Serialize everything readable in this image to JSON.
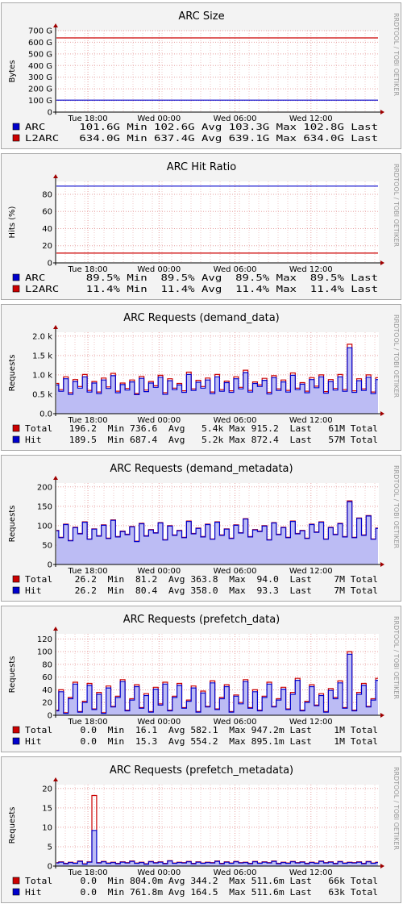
{
  "watermark": "RRDTOOL / TOBI OETIKER",
  "x_ticks": [
    "Tue 18:00",
    "Wed 00:00",
    "Wed 06:00",
    "Wed 12:00"
  ],
  "chart_data": [
    {
      "type": "line",
      "title": "ARC Size",
      "ylabel": "Bytes",
      "yticks": [
        "0",
        "100 G",
        "200 G",
        "300 G",
        "400 G",
        "500 G",
        "600 G",
        "700 G"
      ],
      "ylim": [
        0,
        700
      ],
      "y_unit_value": "G",
      "series": [
        {
          "name": "ARC",
          "color": "#0000cc",
          "style": "line",
          "values": [
            102.6,
            102.6,
            102.6,
            102.6,
            102.6,
            102.6,
            102.6,
            102.6
          ]
        },
        {
          "name": "L2ARC",
          "color": "#cc0000",
          "style": "line",
          "values": [
            637.4,
            637.4,
            637.4,
            637.4,
            637.4,
            637.4,
            637.4,
            637.4
          ]
        }
      ],
      "legend": [
        {
          "name": "ARC",
          "color": "#0000cc",
          "text": "ARC     101.6G Min 102.6G Avg 103.3G Max 102.8G Last"
        },
        {
          "name": "L2ARC",
          "color": "#cc0000",
          "text": "L2ARC   634.0G Min 637.4G Avg 639.1G Max 634.0G Last"
        }
      ]
    },
    {
      "type": "line",
      "title": "ARC Hit Ratio",
      "ylabel": "Hits (%)",
      "yticks": [
        "0",
        "20",
        "40",
        "60",
        "80"
      ],
      "ylim": [
        0,
        95
      ],
      "series": [
        {
          "name": "ARC",
          "color": "#0000cc",
          "style": "line",
          "values": [
            89.5,
            89.5,
            89.5,
            89.5,
            89.5,
            89.5,
            89.5,
            89.5
          ]
        },
        {
          "name": "L2ARC",
          "color": "#cc0000",
          "style": "line",
          "values": [
            11.4,
            11.4,
            11.4,
            11.4,
            11.4,
            11.4,
            11.4,
            11.4
          ]
        }
      ],
      "legend": [
        {
          "name": "ARC",
          "color": "#0000cc",
          "text": "ARC      89.5% Min  89.5% Avg  89.5% Max  89.5% Last"
        },
        {
          "name": "L2ARC",
          "color": "#cc0000",
          "text": "L2ARC    11.4% Min  11.4% Avg  11.4% Max  11.4% Last"
        }
      ]
    },
    {
      "type": "area",
      "title": "ARC Requests (demand_data)",
      "ylabel": "Requests",
      "yticks": [
        "0.0",
        "0.5 k",
        "1.0 k",
        "1.5 k",
        "2.0 k"
      ],
      "ylim": [
        0,
        2100
      ],
      "series": [
        {
          "name": "Total",
          "color": "#cc0000",
          "style": "line",
          "values": [
            780,
            620,
            950,
            540,
            880,
            700,
            1010,
            600,
            830,
            560,
            920,
            690,
            1040,
            580,
            790,
            650,
            870,
            520,
            960,
            610,
            830,
            720,
            990,
            540,
            900,
            660,
            780,
            590,
            1070,
            640,
            860,
            700,
            920,
            560,
            1010,
            620,
            840,
            590,
            950,
            680,
            1120,
            600,
            820,
            740,
            910,
            550,
            980,
            640,
            870,
            600,
            1050,
            660,
            800,
            580,
            930,
            710,
            1000,
            570,
            880,
            650,
            1010,
            620,
            1790,
            590,
            900,
            640,
            1000,
            560,
            930
          ]
        },
        {
          "name": "Hit",
          "color": "#0000cc",
          "style": "line",
          "values": [
            740,
            580,
            900,
            500,
            830,
            660,
            950,
            560,
            790,
            520,
            870,
            650,
            980,
            540,
            750,
            610,
            820,
            490,
            910,
            570,
            790,
            680,
            940,
            500,
            850,
            620,
            740,
            550,
            1010,
            600,
            810,
            660,
            870,
            520,
            950,
            580,
            800,
            550,
            900,
            640,
            1060,
            560,
            780,
            700,
            860,
            510,
            930,
            600,
            820,
            560,
            990,
            620,
            760,
            540,
            880,
            670,
            950,
            530,
            830,
            610,
            950,
            580,
            1700,
            550,
            850,
            600,
            940,
            520,
            880
          ]
        }
      ],
      "legend": [
        {
          "name": "Total",
          "color": "#cc0000",
          "text": "Total   196.2  Min 736.6  Avg   5.4k Max 915.2  Last   61M Total"
        },
        {
          "name": "Hit",
          "color": "#0000cc",
          "text": "Hit     189.5  Min 687.4  Avg   5.2k Max 872.4  Last   57M Total"
        }
      ]
    },
    {
      "type": "area",
      "title": "ARC Requests (demand_metadata)",
      "ylabel": "Requests",
      "yticks": [
        "0",
        "50",
        "100",
        "150",
        "200"
      ],
      "ylim": [
        0,
        210
      ],
      "series": [
        {
          "name": "Total",
          "color": "#cc0000",
          "style": "line",
          "values": [
            88,
            70,
            104,
            62,
            96,
            80,
            110,
            66,
            92,
            74,
            102,
            68,
            115,
            72,
            86,
            78,
            98,
            60,
            106,
            74,
            90,
            82,
            108,
            64,
            100,
            76,
            88,
            70,
            112,
            80,
            94,
            72,
            104,
            66,
            110,
            76,
            92,
            68,
            102,
            82,
            118,
            72,
            90,
            86,
            100,
            64,
            108,
            78,
            96,
            70,
            112,
            80,
            88,
            68,
            104,
            84,
            110,
            66,
            96,
            78,
            106,
            72,
            164,
            70,
            120,
            76,
            126,
            66,
            94
          ]
        },
        {
          "name": "Hit",
          "color": "#0000cc",
          "style": "line",
          "values": [
            87,
            69,
            103,
            61,
            95,
            79,
            109,
            65,
            91,
            73,
            101,
            67,
            114,
            71,
            85,
            77,
            97,
            59,
            105,
            73,
            89,
            81,
            107,
            63,
            99,
            75,
            87,
            69,
            111,
            79,
            93,
            71,
            103,
            65,
            109,
            75,
            91,
            67,
            101,
            81,
            117,
            71,
            89,
            85,
            99,
            63,
            107,
            77,
            95,
            69,
            111,
            79,
            87,
            67,
            103,
            83,
            109,
            65,
            95,
            77,
            105,
            71,
            162,
            69,
            119,
            75,
            125,
            65,
            93
          ]
        }
      ],
      "legend": [
        {
          "name": "Total",
          "color": "#cc0000",
          "text": "Total    26.2  Min  81.2  Avg 363.8  Max  94.0  Last    7M Total"
        },
        {
          "name": "Hit",
          "color": "#0000cc",
          "text": "Hit      26.2  Min  80.4  Avg 358.0  Max  93.3  Last    7M Total"
        }
      ]
    },
    {
      "type": "area",
      "title": "ARC Requests (prefetch_data)",
      "ylabel": "Requests",
      "yticks": [
        "0",
        "20",
        "40",
        "60",
        "80",
        "100",
        "120"
      ],
      "ylim": [
        0,
        128
      ],
      "series": [
        {
          "name": "Total",
          "color": "#cc0000",
          "style": "line",
          "values": [
            8,
            40,
            4,
            28,
            52,
            6,
            22,
            50,
            10,
            36,
            4,
            46,
            14,
            30,
            56,
            8,
            26,
            48,
            12,
            34,
            6,
            44,
            18,
            52,
            8,
            30,
            50,
            12,
            24,
            46,
            6,
            38,
            14,
            54,
            10,
            28,
            48,
            6,
            32,
            20,
            56,
            12,
            40,
            8,
            30,
            52,
            14,
            26,
            44,
            10,
            36,
            58,
            8,
            22,
            48,
            16,
            34,
            6,
            42,
            28,
            54,
            12,
            100,
            8,
            36,
            50,
            14,
            26,
            58
          ]
        },
        {
          "name": "Hit",
          "color": "#0000cc",
          "style": "line",
          "values": [
            7,
            37,
            3,
            26,
            49,
            5,
            20,
            47,
            9,
            33,
            3,
            43,
            13,
            28,
            53,
            7,
            24,
            45,
            11,
            31,
            5,
            41,
            16,
            49,
            7,
            28,
            47,
            11,
            22,
            43,
            5,
            35,
            13,
            51,
            9,
            26,
            45,
            5,
            30,
            18,
            53,
            11,
            37,
            7,
            28,
            49,
            13,
            24,
            41,
            9,
            33,
            55,
            7,
            20,
            45,
            15,
            31,
            5,
            39,
            26,
            51,
            11,
            96,
            7,
            33,
            47,
            13,
            24,
            55
          ]
        }
      ],
      "legend": [
        {
          "name": "Total",
          "color": "#cc0000",
          "text": "Total     0.0  Min  16.1  Avg 582.1  Max 947.2m Last    1M Total"
        },
        {
          "name": "Hit",
          "color": "#0000cc",
          "text": "Hit       0.0  Min  15.3  Avg 554.2  Max 895.1m Last    1M Total"
        }
      ]
    },
    {
      "type": "area",
      "title": "ARC Requests (prefetch_metadata)",
      "ylabel": "Requests",
      "yticks": [
        "0",
        "5",
        "10",
        "15",
        "20"
      ],
      "ylim": [
        0,
        21
      ],
      "series": [
        {
          "name": "Total",
          "color": "#cc0000",
          "style": "line",
          "values": [
            0.9,
            1.1,
            0.7,
            1.0,
            0.8,
            1.3,
            0.6,
            1.1,
            18.2,
            0.9,
            1.2,
            0.8,
            1.0,
            0.7,
            1.1,
            0.9,
            1.3,
            0.8,
            1.0,
            0.6,
            1.2,
            0.9,
            1.1,
            0.7,
            1.4,
            0.8,
            1.0,
            0.9,
            1.2,
            0.7,
            1.1,
            0.8,
            1.0,
            0.9,
            1.3,
            0.7,
            1.1,
            0.8,
            1.2,
            0.9,
            1.0,
            0.7,
            1.2,
            0.8,
            1.1,
            0.9,
            1.3,
            0.7,
            1.0,
            0.8,
            1.2,
            0.9,
            1.1,
            0.7,
            1.0,
            0.8,
            1.3,
            0.9,
            1.1,
            0.7,
            1.2,
            0.8,
            1.0,
            0.9,
            1.1,
            0.7,
            1.2,
            0.8,
            1.0
          ]
        },
        {
          "name": "Hit",
          "color": "#0000cc",
          "style": "line",
          "values": [
            0.8,
            1.0,
            0.6,
            0.9,
            0.7,
            1.2,
            0.5,
            1.0,
            9.2,
            0.8,
            1.1,
            0.7,
            0.9,
            0.6,
            1.0,
            0.8,
            1.2,
            0.7,
            0.9,
            0.5,
            1.1,
            0.8,
            1.0,
            0.6,
            1.3,
            0.7,
            0.9,
            0.8,
            1.1,
            0.6,
            1.0,
            0.7,
            0.9,
            0.8,
            1.2,
            0.6,
            1.0,
            0.7,
            1.1,
            0.8,
            0.9,
            0.6,
            1.1,
            0.7,
            1.0,
            0.8,
            1.2,
            0.6,
            0.9,
            0.7,
            1.1,
            0.8,
            1.0,
            0.6,
            0.9,
            0.7,
            1.2,
            0.8,
            1.0,
            0.6,
            1.1,
            0.7,
            0.9,
            0.8,
            1.0,
            0.6,
            1.1,
            0.7,
            0.9
          ]
        }
      ],
      "legend": [
        {
          "name": "Total",
          "color": "#cc0000",
          "text": "Total     0.0  Min 804.0m Avg 344.2  Max 511.6m Last   66k Total"
        },
        {
          "name": "Hit",
          "color": "#0000cc",
          "text": "Hit       0.0  Min 761.8m Avg 164.5  Max 511.6m Last   63k Total"
        }
      ]
    }
  ]
}
